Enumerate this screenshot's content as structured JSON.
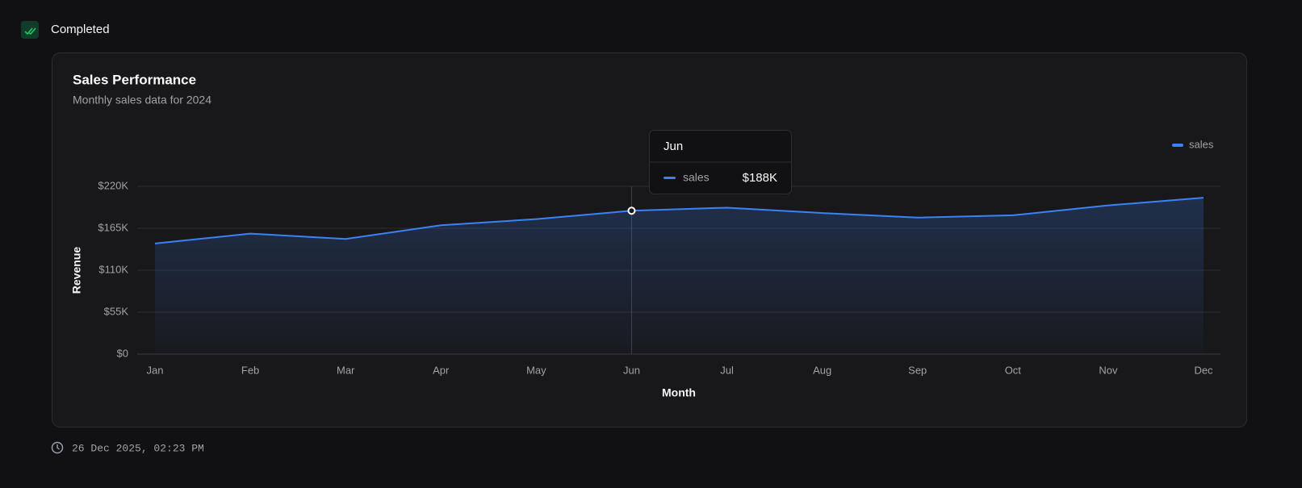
{
  "status": "Completed",
  "timestamp": "26 Dec 2025, 02:23 PM",
  "chart_data": {
    "type": "area",
    "title": "Sales Performance",
    "subtitle": "Monthly sales data for 2024",
    "x_label": "Month",
    "y_label": "Revenue",
    "categories": [
      "Jan",
      "Feb",
      "Mar",
      "Apr",
      "May",
      "Jun",
      "Jul",
      "Aug",
      "Sep",
      "Oct",
      "Nov",
      "Dec"
    ],
    "series": [
      {
        "name": "sales",
        "color": "#3b82f6",
        "values": [
          145000,
          158000,
          151000,
          169000,
          177000,
          188000,
          192000,
          185000,
          179000,
          182000,
          195000,
          205000
        ]
      }
    ],
    "ylim": [
      0,
      220000
    ],
    "yticks": [
      {
        "value": 0,
        "label": "$0"
      },
      {
        "value": 55000,
        "label": "$55K"
      },
      {
        "value": 110000,
        "label": "$110K"
      },
      {
        "value": 165000,
        "label": "$165K"
      },
      {
        "value": 220000,
        "label": "$220K"
      }
    ],
    "grid": true,
    "legend": "top-right",
    "tooltip": {
      "category": "Jun",
      "series": "sales",
      "value": "$188K"
    }
  }
}
